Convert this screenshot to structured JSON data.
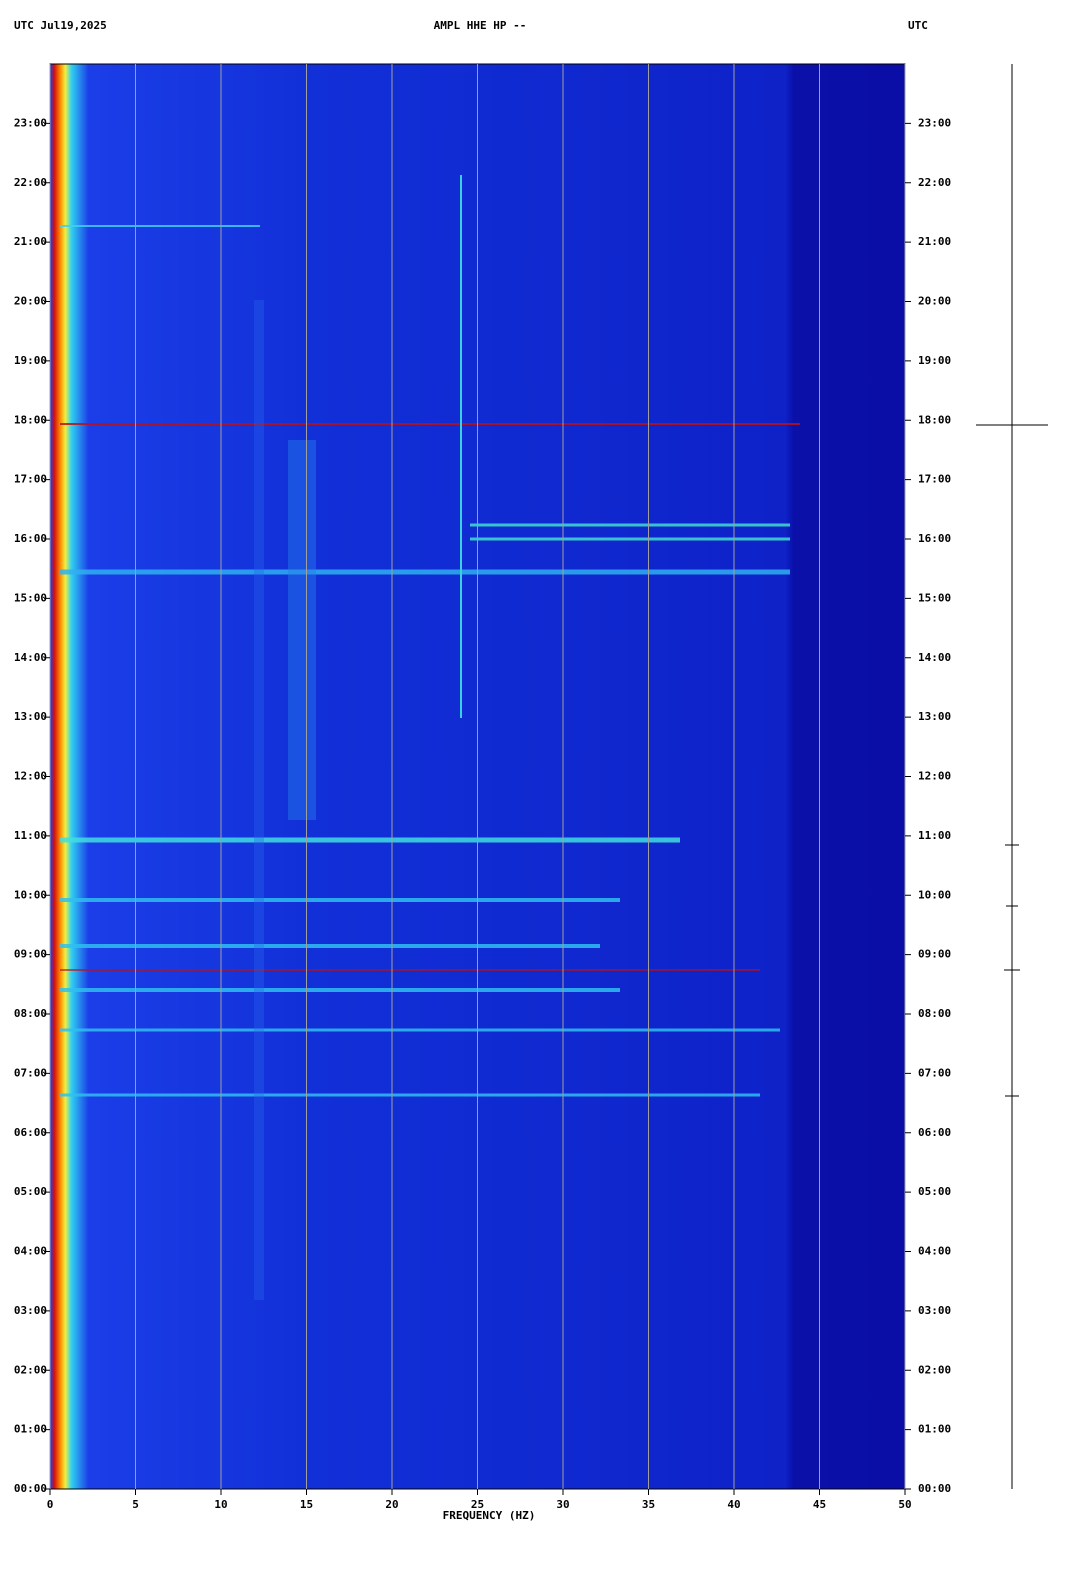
{
  "chart_data": {
    "type": "spectrogram",
    "title": "AMPL HHE HP --",
    "date_label": "UTC  Jul19,2025",
    "right_label": "UTC",
    "xlabel": "FREQUENCY (HZ)",
    "xlim": [
      0,
      50
    ],
    "xticks": [
      0,
      5,
      10,
      15,
      20,
      25,
      30,
      35,
      40,
      45,
      50
    ],
    "ylim": [
      0,
      24
    ],
    "yticks": [
      {
        "value": 0,
        "label": "00:00"
      },
      {
        "value": 1,
        "label": "01:00"
      },
      {
        "value": 2,
        "label": "02:00"
      },
      {
        "value": 3,
        "label": "03:00"
      },
      {
        "value": 4,
        "label": "04:00"
      },
      {
        "value": 5,
        "label": "05:00"
      },
      {
        "value": 6,
        "label": "06:00"
      },
      {
        "value": 7,
        "label": "07:00"
      },
      {
        "value": 8,
        "label": "08:00"
      },
      {
        "value": 9,
        "label": "09:00"
      },
      {
        "value": 10,
        "label": "10:00"
      },
      {
        "value": 11,
        "label": "11:00"
      },
      {
        "value": 12,
        "label": "12:00"
      },
      {
        "value": 13,
        "label": "13:00"
      },
      {
        "value": 14,
        "label": "14:00"
      },
      {
        "value": 15,
        "label": "15:00"
      },
      {
        "value": 16,
        "label": "16:00"
      },
      {
        "value": 17,
        "label": "17:00"
      },
      {
        "value": 18,
        "label": "18:00"
      },
      {
        "value": 19,
        "label": "19:00"
      },
      {
        "value": 20,
        "label": "20:00"
      },
      {
        "value": 21,
        "label": "21:00"
      },
      {
        "value": 22,
        "label": "22:00"
      },
      {
        "value": 23,
        "label": "23:00"
      }
    ],
    "grid": true
  }
}
